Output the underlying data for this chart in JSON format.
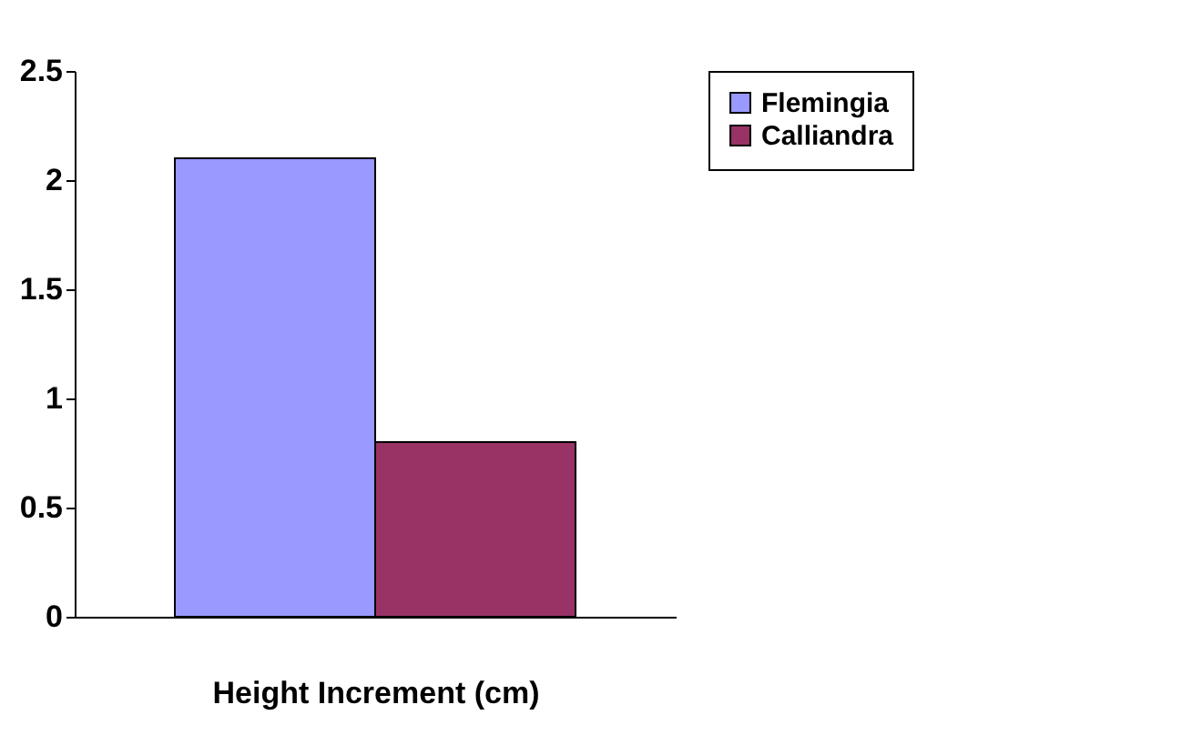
{
  "chart_data": {
    "type": "bar",
    "categories": [
      null
    ],
    "xlabel": "Height Increment (cm)",
    "series": [
      {
        "name": "Flemingia",
        "color": "#9999ff",
        "values": [
          2.1
        ]
      },
      {
        "name": "Calliandra",
        "color": "#993366",
        "values": [
          0.8
        ]
      }
    ],
    "ylim": [
      0,
      2.5
    ],
    "yticks": [
      0,
      0.5,
      1,
      1.5,
      2,
      2.5
    ],
    "legend": "right"
  }
}
